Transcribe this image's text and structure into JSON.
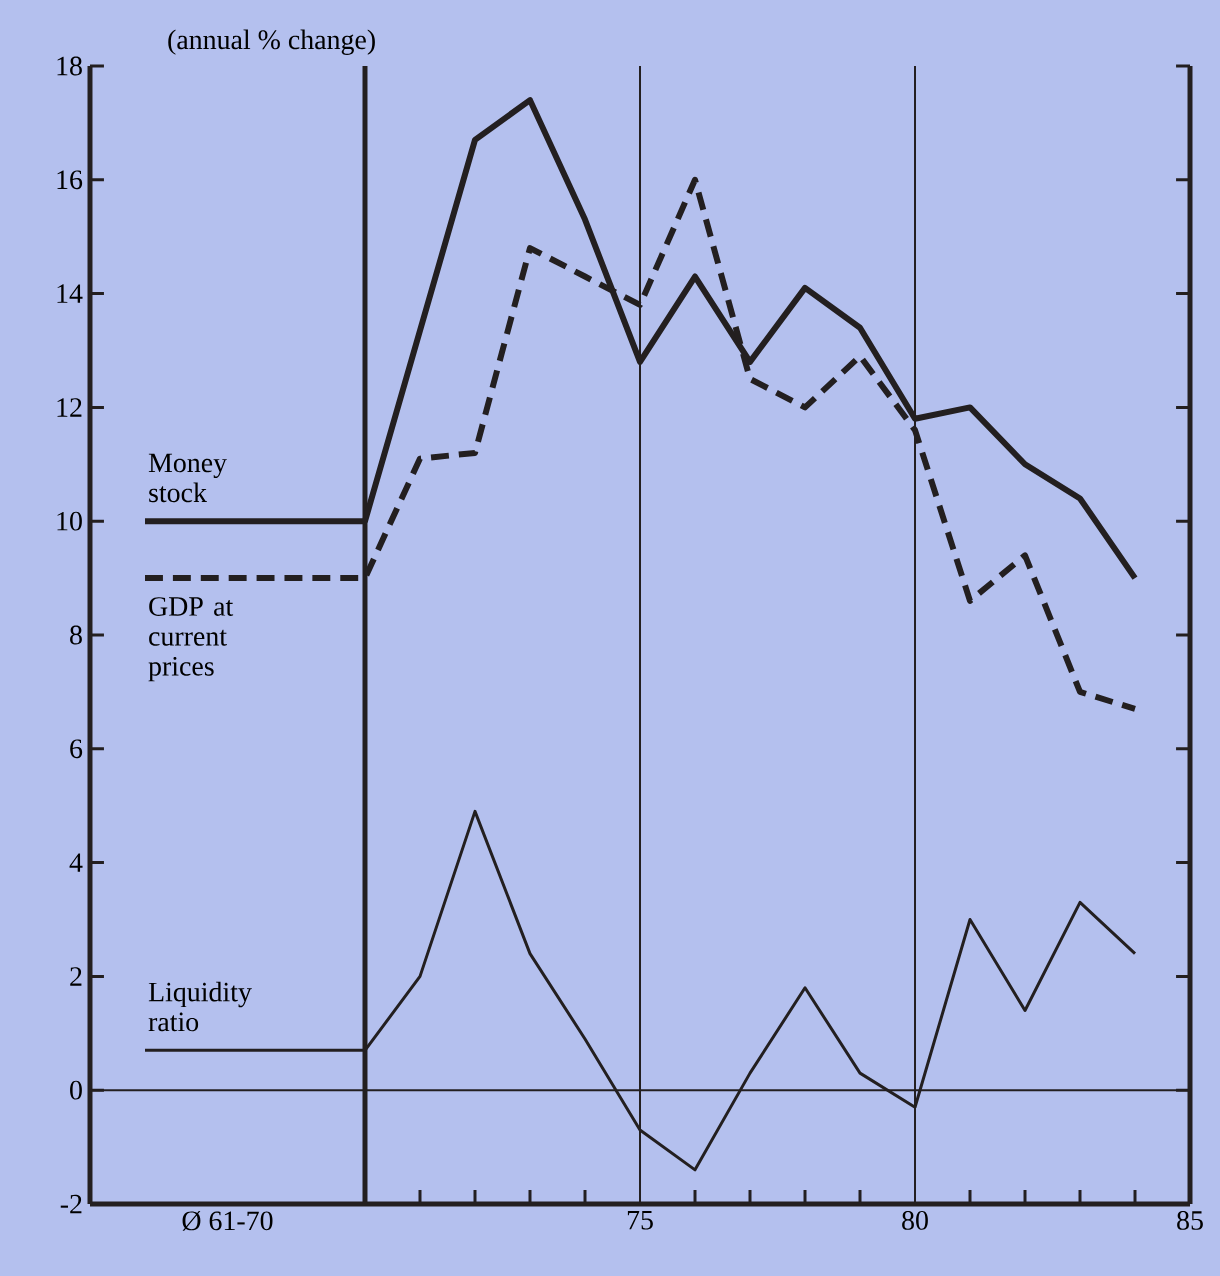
{
  "chart_data": {
    "type": "line",
    "ylabel": "(annual % change)",
    "xlim": [
      65,
      85
    ],
    "ylim": [
      -2,
      18
    ],
    "yticks": [
      -2,
      0,
      2,
      4,
      6,
      8,
      10,
      12,
      14,
      16,
      18
    ],
    "xticks": [
      {
        "value": 67.5,
        "label": "Ø 61-70"
      },
      {
        "value": 71,
        "label": null
      },
      {
        "value": 72,
        "label": null
      },
      {
        "value": 73,
        "label": null
      },
      {
        "value": 74,
        "label": null
      },
      75,
      {
        "value": 76,
        "label": null
      },
      {
        "value": 77,
        "label": null
      },
      {
        "value": 78,
        "label": null
      },
      {
        "value": 79,
        "label": null
      },
      80,
      {
        "value": 81,
        "label": null
      },
      {
        "value": 82,
        "label": null
      },
      {
        "value": 83,
        "label": null
      },
      {
        "value": 84,
        "label": null
      },
      85
    ],
    "grid": false,
    "marker": "none",
    "series": [
      {
        "name": "Money stock",
        "color": "#231f20",
        "line_style": "solid",
        "x": [
          66,
          70,
          72,
          73,
          74,
          75,
          76,
          77,
          78,
          79,
          80,
          81,
          82,
          83,
          84
        ],
        "values": [
          10,
          10,
          16.7,
          17.4,
          15.3,
          12.8,
          14.3,
          12.8,
          14.1,
          13.4,
          11.8,
          12.0,
          11.0,
          10.4,
          9.0
        ]
      },
      {
        "name": "GDP at current prices",
        "color": "#231f20",
        "line_style": "dashed",
        "x": [
          66,
          70,
          71,
          72,
          73,
          74,
          75,
          76,
          77,
          78,
          79,
          80,
          81,
          82,
          83,
          84
        ],
        "values": [
          9,
          9,
          11.1,
          11.2,
          14.8,
          14.3,
          13.8,
          16.0,
          12.5,
          12.0,
          12.9,
          11.6,
          8.6,
          9.4,
          7.0,
          6.7
        ]
      },
      {
        "name": "Liquidity ratio",
        "color": "#231f20",
        "line_style": "solid",
        "x": [
          66,
          70,
          71,
          72,
          73,
          74,
          75,
          76,
          77,
          78,
          79,
          80,
          81,
          82,
          83,
          84
        ],
        "values": [
          0.7,
          0.7,
          2.0,
          4.9,
          2.4,
          0.9,
          -0.7,
          -1.4,
          0.3,
          1.8,
          0.3,
          -0.3,
          3.0,
          1.4,
          3.3,
          2.4
        ]
      }
    ],
    "ref_lines": [
      {
        "axis": "y",
        "value": 0,
        "color": "#231f20"
      },
      {
        "axis": "x",
        "value": 70,
        "color": "#231f20"
      },
      {
        "axis": "x",
        "value": 75,
        "color": "#231f20"
      },
      {
        "axis": "x",
        "value": 80,
        "color": "#231f20"
      }
    ]
  }
}
